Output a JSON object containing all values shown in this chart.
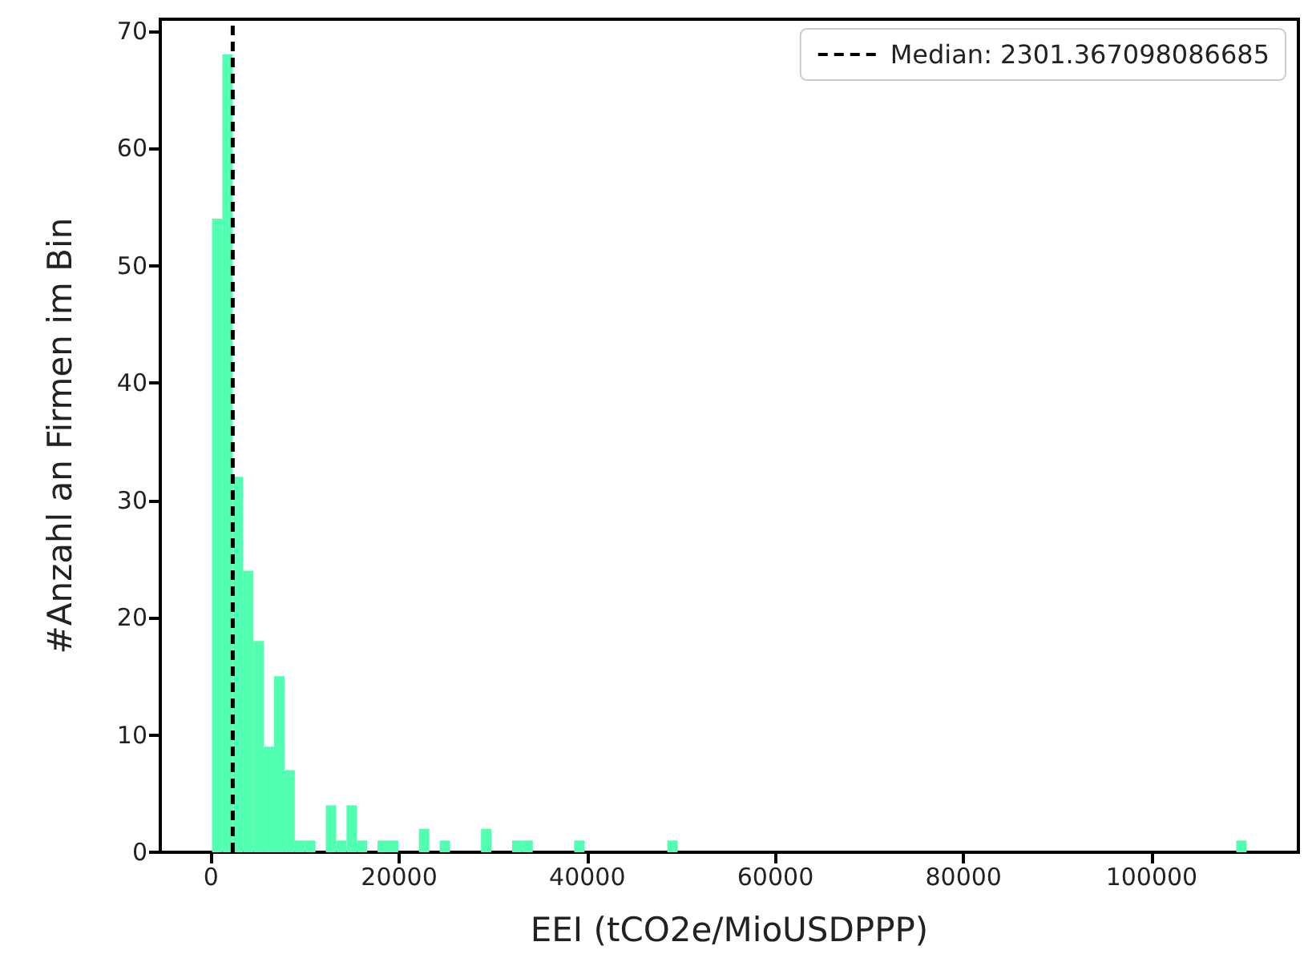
{
  "chart_data": {
    "type": "histogram",
    "xlabel": "EEI (tCO2e/MioUSDPPP)",
    "ylabel": "#Anzahl an Firmen im Bin",
    "bins": [
      100,
      1200,
      2300,
      3400,
      4500,
      5600,
      6700,
      7800,
      8900,
      10000,
      11100,
      12200,
      13300,
      14400,
      15500,
      16600,
      17700,
      18800,
      19900,
      21000,
      22100,
      23200,
      24300,
      25400,
      26500,
      27600,
      28700,
      29800,
      30900,
      32000,
      33100,
      34200,
      35300,
      36400,
      37500,
      38600,
      39700,
      40800,
      41900,
      43000,
      44100,
      45200,
      46300,
      47400,
      48500,
      49600,
      50700,
      51800,
      52900,
      54000,
      55100,
      56200,
      57300,
      58400,
      59500,
      60600,
      61700,
      62800,
      63900,
      65000,
      66100,
      67200,
      68300,
      69400,
      70500,
      71600,
      72700,
      73800,
      74900,
      76000,
      77100,
      78200,
      79300,
      80400,
      81500,
      82600,
      83700,
      84800,
      85900,
      87000,
      88100,
      89200,
      90300,
      91400,
      92500,
      93600,
      94700,
      95800,
      96900,
      98000,
      99100,
      100200,
      101300,
      102400,
      103500,
      104600,
      105700,
      106800,
      107900,
      109000,
      110100
    ],
    "values": [
      54,
      68,
      32,
      24,
      18,
      9,
      15,
      7,
      1,
      1,
      0,
      4,
      1,
      4,
      1,
      0,
      1,
      1,
      0,
      0,
      2,
      0,
      1,
      0,
      0,
      0,
      2,
      0,
      0,
      1,
      1,
      0,
      0,
      0,
      0,
      1,
      0,
      0,
      0,
      0,
      0,
      0,
      0,
      0,
      1,
      0,
      0,
      0,
      0,
      0,
      0,
      0,
      0,
      0,
      0,
      0,
      0,
      0,
      0,
      0,
      0,
      0,
      0,
      0,
      0,
      0,
      0,
      0,
      0,
      0,
      0,
      0,
      0,
      0,
      0,
      0,
      0,
      0,
      0,
      0,
      0,
      0,
      0,
      0,
      0,
      0,
      0,
      0,
      0,
      0,
      0,
      0,
      0,
      0,
      0,
      0,
      0,
      0,
      0,
      1
    ],
    "color": "#50ffb0",
    "xlim": [
      -5400,
      115600
    ],
    "xticks": [
      0,
      20000,
      40000,
      60000,
      80000,
      100000
    ],
    "ylim": [
      0,
      71
    ],
    "yticks": [
      0,
      10,
      20,
      30,
      40,
      50,
      60,
      70
    ],
    "ref_lines": [
      {
        "axis": "x",
        "value": 2301.367098086685,
        "label": "Median: 2301.367098086685",
        "color": "#000000",
        "line_style": "dashed"
      }
    ],
    "legend": "top right",
    "grid": false
  }
}
